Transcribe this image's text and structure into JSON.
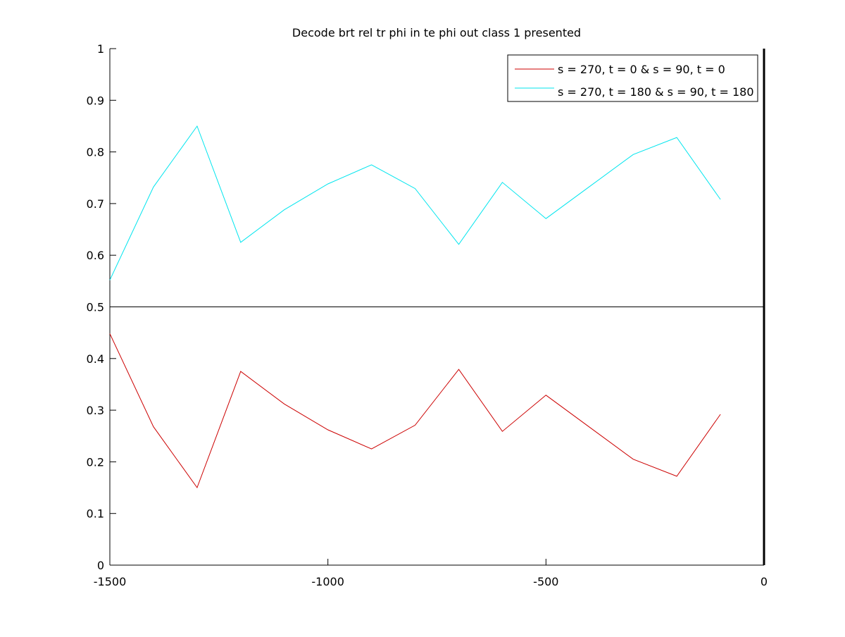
{
  "chart_data": {
    "type": "line",
    "title": "Decode brt rel tr phi in te phi out  class 1 presented",
    "xlabel": "",
    "ylabel": "",
    "xlim": [
      -1500,
      0
    ],
    "ylim": [
      0,
      1
    ],
    "xticks": [
      -1500,
      -1000,
      -500,
      0
    ],
    "xtick_labels": [
      "-1500",
      "-1000",
      "-500",
      "0"
    ],
    "yticks": [
      0,
      0.1,
      0.2,
      0.3,
      0.4,
      0.5,
      0.6,
      0.7,
      0.8,
      0.9,
      1
    ],
    "ytick_labels": [
      "0",
      "0.1",
      "0.2",
      "0.3",
      "0.4",
      "0.5",
      "0.6",
      "0.7",
      "0.8",
      "0.9",
      "1"
    ],
    "grid": false,
    "legend_position": "top-right",
    "reference_lines": [
      {
        "orientation": "horizontal",
        "value": 0.5,
        "color": "#000000"
      },
      {
        "orientation": "vertical",
        "value": 0,
        "color": "#000000"
      }
    ],
    "x": [
      -1500,
      -1400,
      -1300,
      -1200,
      -1100,
      -1000,
      -900,
      -800,
      -700,
      -600,
      -500,
      -400,
      -300,
      -200,
      -100
    ],
    "series": [
      {
        "name": "s = 270, t = 0 & s = 90, t = 0",
        "color": "#cc0000",
        "values": [
          0.448,
          0.268,
          0.15,
          0.375,
          0.312,
          0.262,
          0.225,
          0.271,
          0.379,
          0.259,
          0.329,
          0.267,
          0.205,
          0.172,
          0.292
        ]
      },
      {
        "name": "s = 270, t = 180 & s = 90, t = 180",
        "color": "#00e5ee",
        "values": [
          0.552,
          0.732,
          0.85,
          0.625,
          0.688,
          0.738,
          0.775,
          0.729,
          0.621,
          0.741,
          0.671,
          0.733,
          0.795,
          0.828,
          0.708
        ]
      }
    ]
  }
}
